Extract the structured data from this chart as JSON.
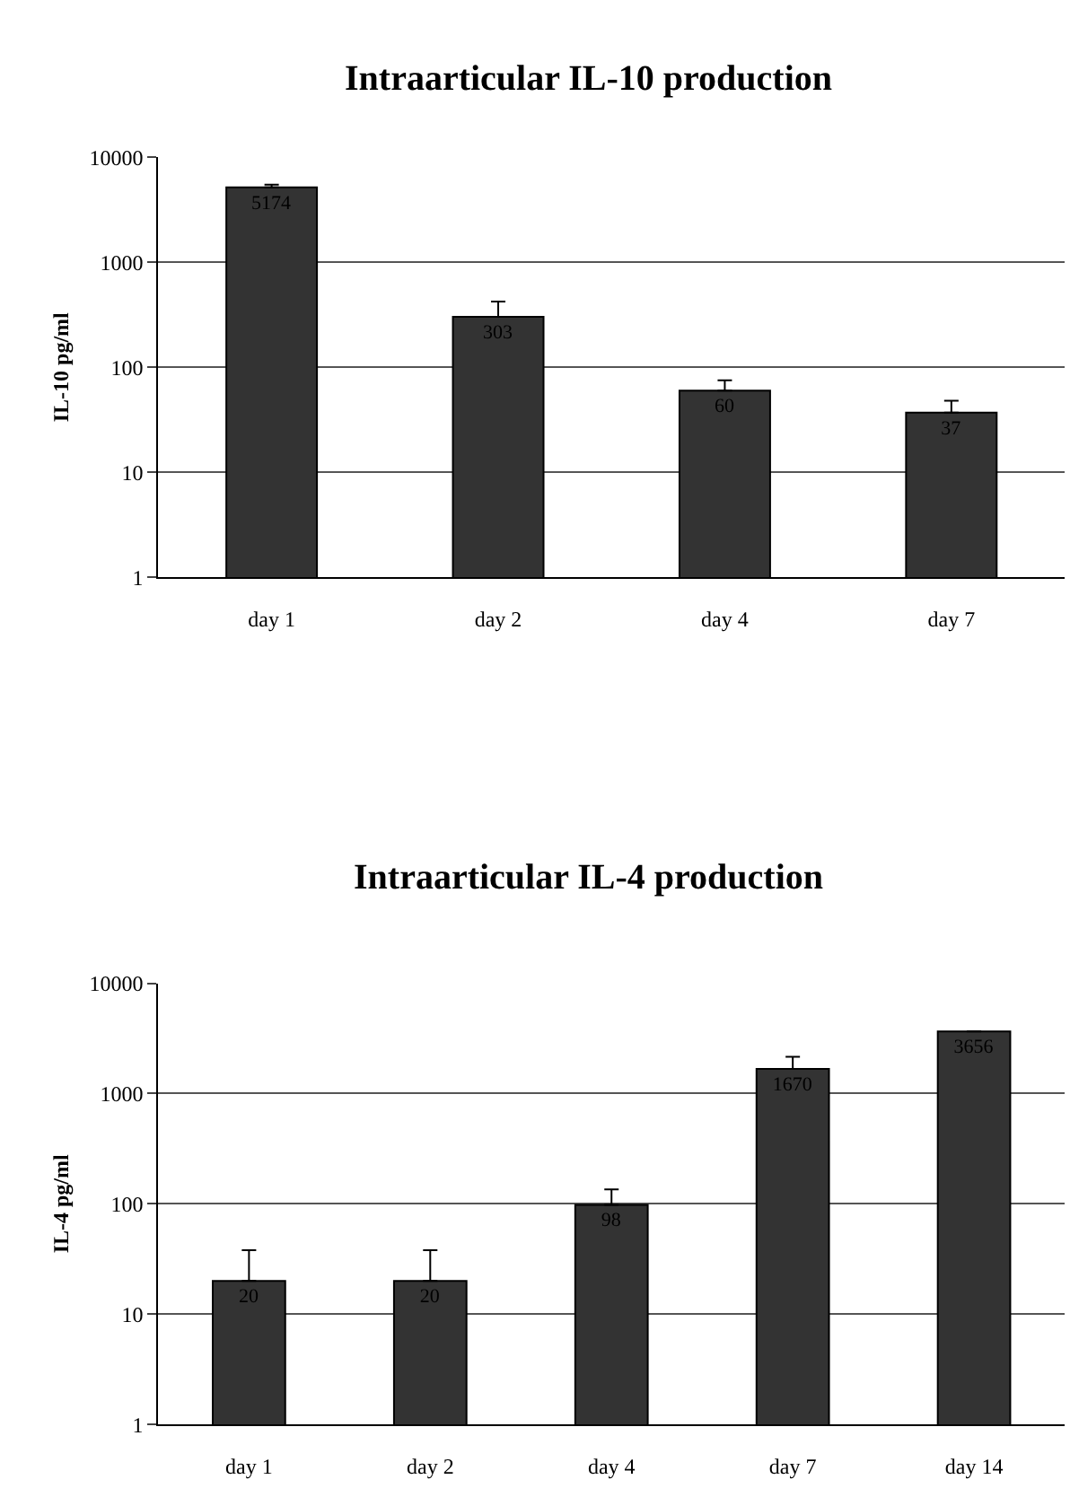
{
  "chart_data": [
    {
      "type": "bar",
      "title": "Intraarticular IL-10 production",
      "ylabel": "IL-10 pg/ml",
      "categories": [
        "day 1",
        "day 2",
        "day 4",
        "day 7"
      ],
      "values": [
        5174,
        303,
        60,
        37
      ],
      "errors": [
        [
          5174,
          5474
        ],
        [
          303,
          423
        ],
        [
          60,
          75
        ],
        [
          37,
          48
        ]
      ],
      "color": "#333333",
      "log": true,
      "ylim": [
        1,
        10000
      ],
      "yticks": [
        1,
        10,
        100,
        1000,
        10000
      ],
      "grid": "y",
      "data_labels": true
    },
    {
      "type": "bar",
      "title": "Intraarticular IL-4 production",
      "ylabel": "IL-4 pg/ml",
      "categories": [
        "day 1",
        "day 2",
        "day 4",
        "day 7",
        "day 14"
      ],
      "values": [
        20,
        20,
        98,
        1670,
        3656
      ],
      "errors": [
        [
          20,
          38
        ],
        [
          20,
          38
        ],
        [
          98,
          135
        ],
        [
          1670,
          2150
        ],
        null
      ],
      "color": "#333333",
      "log": true,
      "ylim": [
        1,
        10000
      ],
      "yticks": [
        1,
        10,
        100,
        1000,
        10000
      ],
      "grid": "y",
      "data_labels": true
    }
  ]
}
